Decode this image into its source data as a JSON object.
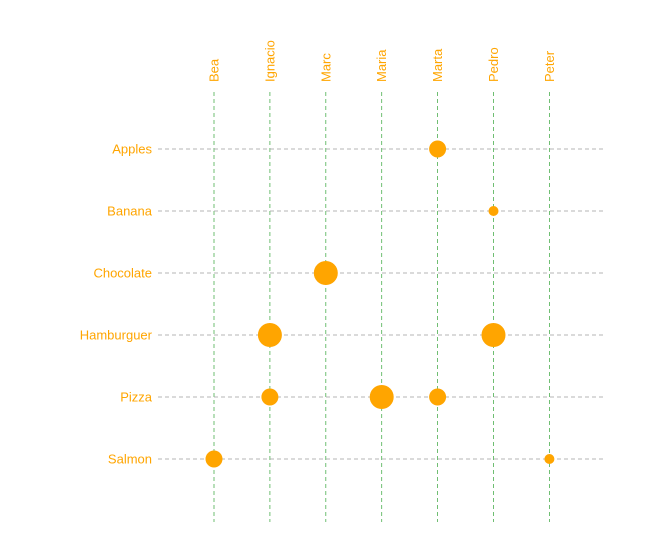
{
  "colors": {
    "marker": "#FFA500",
    "label": "#FFA500",
    "grid_x": "#4caf50",
    "grid_y": "#9e9e9e",
    "background": "#ffffff"
  },
  "chart_data": {
    "type": "scatter",
    "title": "",
    "xlabel": "",
    "ylabel": "",
    "x_categories": [
      "Bea",
      "Ignacio",
      "Marc",
      "Maria",
      "Marta",
      "Pedro",
      "Peter"
    ],
    "y_categories": [
      "Apples",
      "Banana",
      "Chocolate",
      "Hamburguer",
      "Pizza",
      "Salmon"
    ],
    "x_tick_position": "top",
    "x_tick_rotation": 90,
    "grid": true,
    "size_scale": [
      1,
      3
    ],
    "points": [
      {
        "x": "Marta",
        "y": "Apples",
        "size": 2
      },
      {
        "x": "Pedro",
        "y": "Banana",
        "size": 1
      },
      {
        "x": "Marc",
        "y": "Chocolate",
        "size": 3
      },
      {
        "x": "Ignacio",
        "y": "Hamburguer",
        "size": 3
      },
      {
        "x": "Pedro",
        "y": "Hamburguer",
        "size": 3
      },
      {
        "x": "Ignacio",
        "y": "Pizza",
        "size": 2
      },
      {
        "x": "Maria",
        "y": "Pizza",
        "size": 3
      },
      {
        "x": "Marta",
        "y": "Pizza",
        "size": 2
      },
      {
        "x": "Bea",
        "y": "Salmon",
        "size": 2
      },
      {
        "x": "Peter",
        "y": "Salmon",
        "size": 1
      }
    ]
  }
}
